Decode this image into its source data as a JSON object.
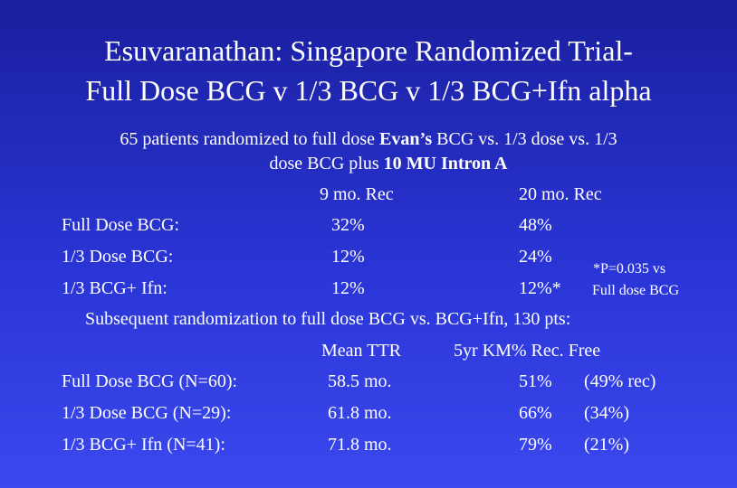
{
  "title": {
    "line1": "Esuvaranathan: Singapore Randomized Trial-",
    "line2": "Full Dose BCG v 1/3 BCG  v 1/3 BCG+Ifn alpha"
  },
  "intro": {
    "p1": "65 patients randomized to full dose ",
    "p1_bold": "Evan’s",
    "p2": " BCG vs. 1/3 dose vs. 1/3",
    "p3": "dose BCG plus ",
    "p3_bold": "10 MU Intron A"
  },
  "table1": {
    "col1_header": "9 mo. Rec",
    "col2_header": "20 mo. Rec",
    "rows": [
      {
        "label": "Full Dose BCG:",
        "v1": "32%",
        "v2": "48%"
      },
      {
        "label": "1/3 Dose BCG:",
        "v1": "12%",
        "v2": "24%"
      },
      {
        "label": "1/3 BCG+ Ifn:",
        "v1": "12%",
        "v2": "12%*"
      }
    ],
    "footnote_line1": "*P=0.035 vs",
    "footnote_line2": "Full dose BCG"
  },
  "subsequent": "Subsequent randomization to full dose BCG vs. BCG+Ifn, 130 pts:",
  "table2": {
    "col1_header": "Mean TTR",
    "col2_header": "5yr KM% Rec. Free",
    "rows": [
      {
        "label": "Full Dose BCG (N=60):",
        "v1": "58.5 mo.",
        "v2": "51%",
        "v3": "(49% rec)"
      },
      {
        "label": "1/3 Dose BCG  (N=29):",
        "v1": "61.8 mo.",
        "v2": "66%",
        "v3": "(34%)"
      },
      {
        "label": "1/3 BCG+ Ifn   (N=41):",
        "v1": "71.8 mo.",
        "v2": "79%",
        "v3": "(21%)"
      }
    ]
  }
}
